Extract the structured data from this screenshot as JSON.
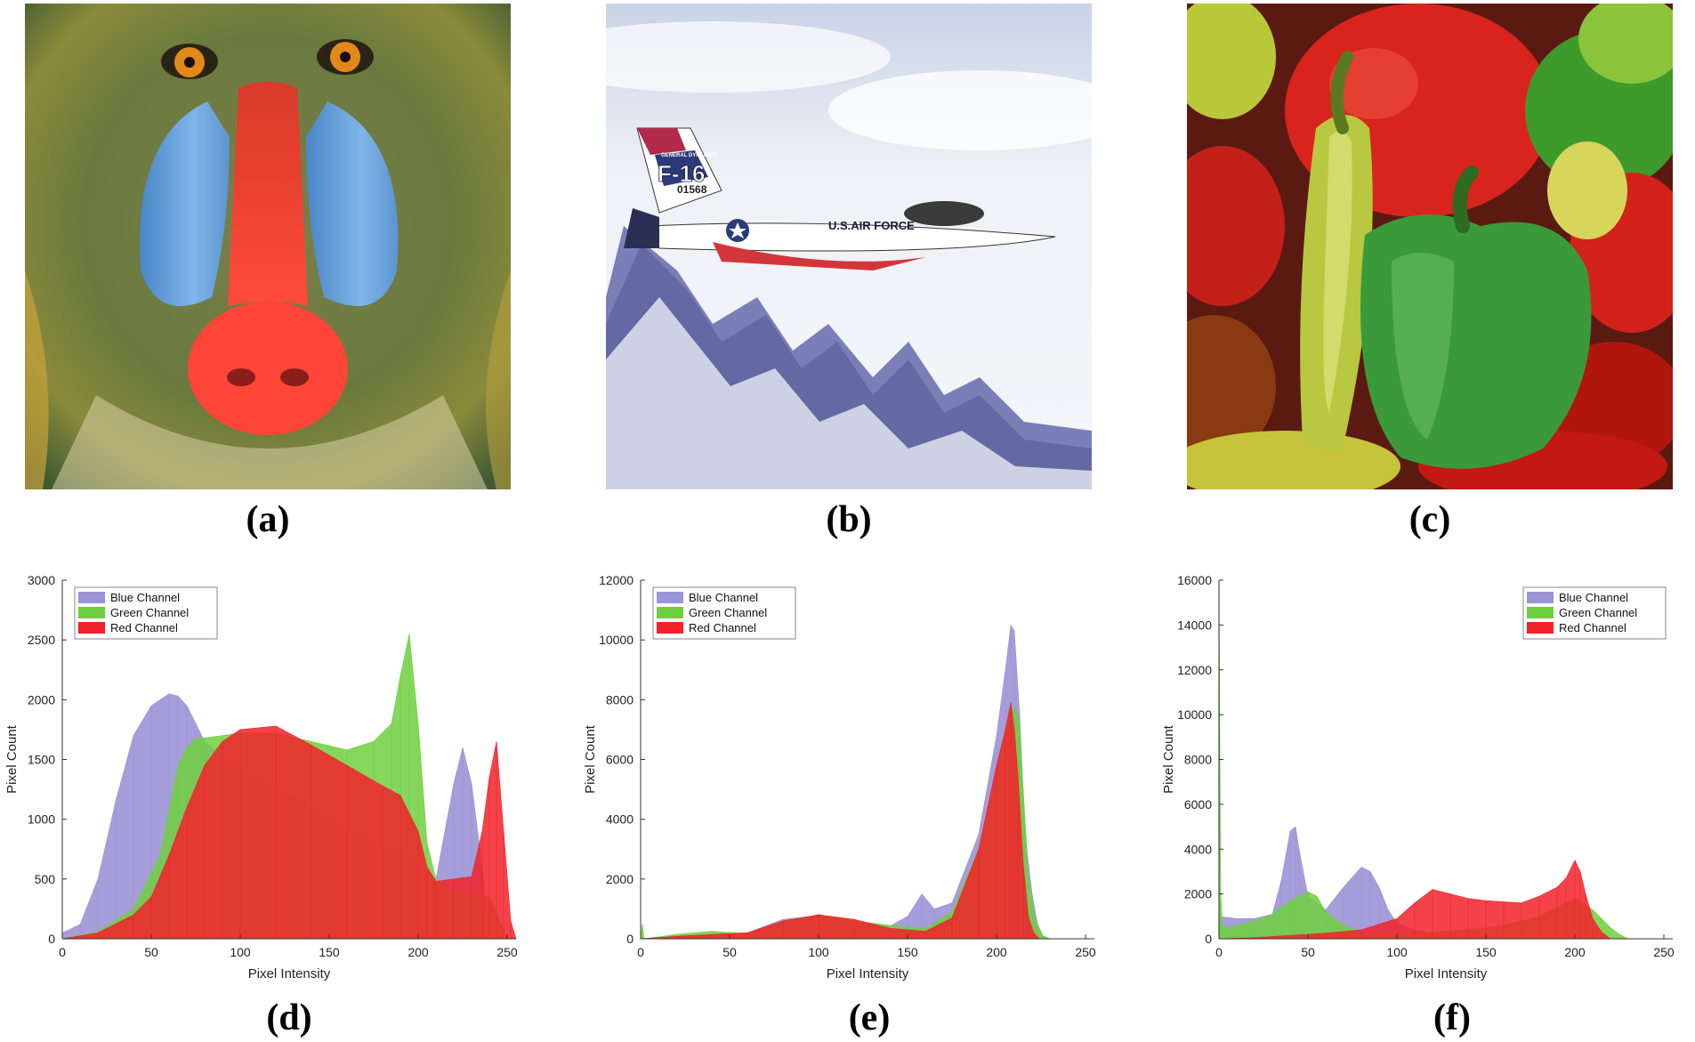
{
  "captions": {
    "a": "(a)",
    "b": "(b)",
    "c": "(c)",
    "d": "(d)",
    "e": "(e)",
    "f": "(f)"
  },
  "photos": {
    "a": {
      "subject": "mandrill face"
    },
    "b": {
      "subject": "F-16 jet over snowy mountains",
      "tail_text": "F-16",
      "serial_text": "01568",
      "maker_text": "GENERAL DYNAMICS",
      "fuselage_text": "U.S.AIR FORCE"
    },
    "c": {
      "subject": "red, green and yellow peppers"
    }
  },
  "colors": {
    "blue_channel": "#9b94d6",
    "green_channel": "#6fcf3f",
    "red_channel": "#f2212a"
  },
  "chart_data": [
    {
      "type": "area",
      "xlabel": "Pixel Intensity",
      "ylabel": "Pixel Count",
      "xlim": [
        0,
        255
      ],
      "ylim": [
        0,
        3000
      ],
      "xticks": [
        "0",
        "50",
        "100",
        "150",
        "200",
        "250"
      ],
      "yticks": [
        "0",
        "500",
        "1000",
        "1500",
        "2000",
        "2500",
        "3000"
      ],
      "legend_position": "top-left",
      "series": [
        {
          "name": "Blue Channel",
          "x": [
            0,
            10,
            20,
            30,
            40,
            50,
            60,
            65,
            70,
            80,
            100,
            120,
            140,
            160,
            180,
            200,
            210,
            220,
            225,
            230,
            236,
            240
          ],
          "values": [
            50,
            120,
            500,
            1150,
            1700,
            1950,
            2050,
            2030,
            1950,
            1650,
            1420,
            1250,
            1080,
            920,
            780,
            620,
            500,
            1300,
            1600,
            1300,
            600,
            0
          ]
        },
        {
          "name": "Green Channel",
          "x": [
            0,
            20,
            40,
            55,
            65,
            70,
            75,
            80,
            100,
            120,
            140,
            160,
            175,
            185,
            190,
            195,
            200,
            205,
            210,
            220,
            240,
            250
          ],
          "values": [
            0,
            60,
            250,
            700,
            1450,
            1600,
            1680,
            1680,
            1720,
            1720,
            1650,
            1580,
            1650,
            1800,
            2200,
            2550,
            1800,
            800,
            500,
            400,
            350,
            0
          ]
        },
        {
          "name": "Red Channel",
          "x": [
            0,
            20,
            40,
            50,
            60,
            70,
            80,
            90,
            100,
            120,
            140,
            160,
            180,
            190,
            200,
            205,
            210,
            220,
            230,
            236,
            240,
            244,
            248,
            252,
            255
          ],
          "values": [
            0,
            50,
            200,
            350,
            700,
            1100,
            1450,
            1650,
            1750,
            1780,
            1620,
            1450,
            1280,
            1200,
            900,
            600,
            480,
            500,
            520,
            900,
            1350,
            1650,
            900,
            150,
            0
          ]
        }
      ]
    },
    {
      "type": "area",
      "xlabel": "Pixel Intensity",
      "ylabel": "Pixel Count",
      "xlim": [
        0,
        255
      ],
      "ylim": [
        0,
        12000
      ],
      "xticks": [
        "0",
        "50",
        "100",
        "150",
        "200",
        "250"
      ],
      "yticks": [
        "0",
        "2000",
        "4000",
        "6000",
        "8000",
        "10000",
        "12000"
      ],
      "legend_position": "top-left",
      "series": [
        {
          "name": "Blue Channel",
          "x": [
            0,
            20,
            60,
            80,
            100,
            120,
            140,
            150,
            158,
            165,
            175,
            190,
            200,
            205,
            208,
            210,
            213,
            216,
            220,
            223,
            226,
            230
          ],
          "values": [
            0,
            100,
            200,
            650,
            780,
            550,
            420,
            750,
            1500,
            1000,
            1200,
            3500,
            6800,
            9000,
            10500,
            10300,
            7500,
            3500,
            1500,
            500,
            100,
            0
          ]
        },
        {
          "name": "Green Channel",
          "x": [
            0,
            1,
            2,
            20,
            40,
            60,
            80,
            100,
            120,
            140,
            160,
            175,
            190,
            200,
            205,
            210,
            213,
            215,
            218,
            222,
            226,
            230
          ],
          "values": [
            0,
            500,
            0,
            150,
            250,
            180,
            550,
            820,
            600,
            450,
            350,
            900,
            3000,
            5500,
            7000,
            7800,
            7200,
            5000,
            2000,
            600,
            100,
            0
          ]
        },
        {
          "name": "Red Channel",
          "x": [
            0,
            20,
            40,
            60,
            80,
            100,
            120,
            140,
            160,
            175,
            190,
            200,
            205,
            208,
            210,
            212,
            215,
            218,
            221,
            224
          ],
          "values": [
            0,
            80,
            150,
            200,
            600,
            800,
            650,
            350,
            250,
            700,
            3000,
            5800,
            7000,
            7900,
            7000,
            5500,
            2500,
            700,
            200,
            0
          ]
        }
      ]
    },
    {
      "type": "area",
      "xlabel": "Pixel Intensity",
      "ylabel": "Pixel Count",
      "xlim": [
        0,
        255
      ],
      "ylim": [
        0,
        16000
      ],
      "xticks": [
        "0",
        "50",
        "100",
        "150",
        "200",
        "250"
      ],
      "yticks": [
        "0",
        "2000",
        "4000",
        "6000",
        "8000",
        "10000",
        "12000",
        "14000",
        "16000"
      ],
      "legend_position": "top-right",
      "series": [
        {
          "name": "Blue Channel",
          "x": [
            0,
            10,
            20,
            30,
            35,
            40,
            43,
            45,
            50,
            60,
            70,
            80,
            85,
            90,
            95,
            100,
            110,
            120,
            130,
            150,
            170,
            190,
            200
          ],
          "values": [
            1000,
            900,
            900,
            1100,
            2600,
            4800,
            5000,
            4000,
            1900,
            1300,
            2300,
            3200,
            3000,
            2300,
            1300,
            700,
            400,
            250,
            150,
            80,
            40,
            20,
            0
          ]
        },
        {
          "name": "Green Channel",
          "x": [
            0,
            1,
            2,
            10,
            20,
            30,
            40,
            50,
            55,
            60,
            70,
            80,
            100,
            120,
            140,
            160,
            180,
            200,
            210,
            215,
            220,
            225,
            230
          ],
          "values": [
            15800,
            2000,
            500,
            600,
            800,
            1100,
            1700,
            2100,
            1900,
            1200,
            600,
            300,
            250,
            300,
            400,
            600,
            1000,
            1800,
            1300,
            900,
            500,
            200,
            0
          ]
        },
        {
          "name": "Red Channel",
          "x": [
            0,
            20,
            40,
            60,
            80,
            100,
            110,
            120,
            130,
            140,
            150,
            160,
            170,
            180,
            190,
            195,
            200,
            203,
            206,
            210,
            215,
            220
          ],
          "values": [
            0,
            50,
            150,
            250,
            400,
            900,
            1600,
            2200,
            2000,
            1800,
            1700,
            1650,
            1600,
            1900,
            2300,
            2700,
            3500,
            3000,
            2000,
            900,
            300,
            0
          ]
        }
      ]
    }
  ]
}
